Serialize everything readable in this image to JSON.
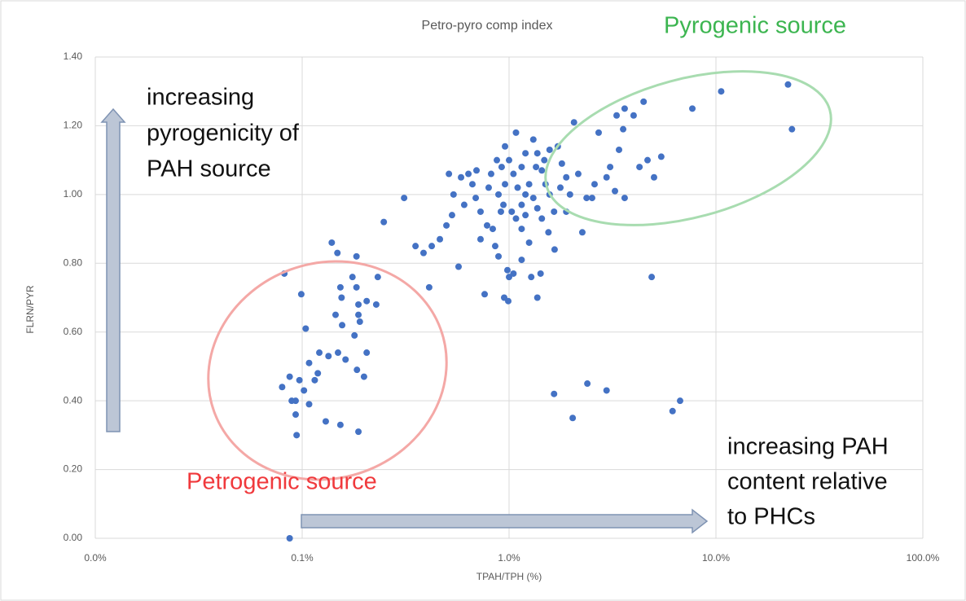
{
  "chart_data": {
    "type": "scatter",
    "title": "Petro-pyro comp index",
    "x_label": "TPAH/TPH (%)",
    "y_label": "FLRN/PYR",
    "xscale": "log",
    "xlim": [
      0.01,
      100
    ],
    "xticks": [
      {
        "value": 0.01,
        "label": "0.0%"
      },
      {
        "value": 0.1,
        "label": "0.1%"
      },
      {
        "value": 1,
        "label": "1.0%"
      },
      {
        "value": 10,
        "label": "10.0%"
      },
      {
        "value": 100,
        "label": "100.0%"
      }
    ],
    "ylim": [
      0,
      1.4
    ],
    "yticks": [
      {
        "value": 0,
        "label": "0.00"
      },
      {
        "value": 0.2,
        "label": "0.20"
      },
      {
        "value": 0.4,
        "label": "0.40"
      },
      {
        "value": 0.6,
        "label": "0.60"
      },
      {
        "value": 0.8,
        "label": "0.80"
      },
      {
        "value": 1.0,
        "label": "1.00"
      },
      {
        "value": 1.2,
        "label": "1.20"
      },
      {
        "value": 1.4,
        "label": "1.40"
      }
    ],
    "grid": true,
    "color": "#4472c4",
    "x": [
      0.087,
      0.082,
      0.099,
      0.104,
      0.139,
      0.148,
      0.183,
      0.153,
      0.155,
      0.175,
      0.183,
      0.187,
      0.205,
      0.228,
      0.232,
      0.145,
      0.156,
      0.187,
      0.19,
      0.179,
      0.205,
      0.121,
      0.134,
      0.149,
      0.108,
      0.119,
      0.115,
      0.162,
      0.184,
      0.199,
      0.087,
      0.097,
      0.08,
      0.102,
      0.089,
      0.093,
      0.108,
      0.093,
      0.094,
      0.13,
      0.153,
      0.187,
      0.248,
      0.311,
      0.353,
      0.386,
      0.423,
      0.463,
      0.512,
      0.411,
      0.498,
      0.53,
      0.539,
      0.57,
      0.586,
      0.636,
      0.665,
      0.69,
      0.728,
      0.728,
      0.762,
      0.857,
      0.889,
      0.797,
      0.819,
      0.873,
      0.921,
      0.947,
      0.991,
      0.982,
      1.0,
      1.05,
      1.08,
      0.956,
      1.0,
      1.05,
      1.1,
      1.15,
      1.2,
      1.15,
      1.25,
      1.28,
      1.42,
      1.37,
      1.31,
      1.37,
      1.44,
      1.5,
      1.57,
      1.65,
      1.55,
      1.66,
      1.72,
      1.8,
      1.89,
      1.97,
      2.16,
      2.06,
      2.26,
      2.37,
      2.59,
      2.71,
      2.96,
      3.08,
      3.25,
      3.4,
      3.31,
      3.62,
      3.56,
      4.0,
      4.27,
      4.47,
      4.67,
      4.89,
      5.02,
      5.44,
      7.69,
      10.6,
      22.3,
      23.3,
      1.65,
      2.03,
      2.39,
      2.96,
      6.17,
      6.71,
      3.62,
      2.52,
      0.913,
      0.939,
      1.03,
      1.08,
      0.889,
      0.956,
      1.2,
      1.25,
      1.31,
      1.37,
      1.44,
      1.35,
      1.48,
      1.57,
      1.15,
      1.2,
      1.77,
      1.89,
      1.15,
      0.783,
      0.834,
      0.696,
      0.607
    ],
    "values": [
      0,
      0.77,
      0.71,
      0.61,
      0.86,
      0.83,
      0.82,
      0.73,
      0.7,
      0.76,
      0.73,
      0.68,
      0.69,
      0.68,
      0.76,
      0.65,
      0.62,
      0.65,
      0.63,
      0.59,
      0.54,
      0.54,
      0.53,
      0.54,
      0.51,
      0.48,
      0.46,
      0.52,
      0.49,
      0.47,
      0.47,
      0.46,
      0.44,
      0.43,
      0.4,
      0.4,
      0.39,
      0.36,
      0.3,
      0.34,
      0.33,
      0.31,
      0.92,
      0.99,
      0.85,
      0.83,
      0.85,
      0.87,
      1.06,
      0.73,
      0.91,
      0.94,
      1.0,
      0.79,
      1.05,
      1.06,
      1.03,
      0.99,
      0.95,
      0.87,
      0.71,
      0.85,
      0.82,
      1.02,
      1.06,
      1.1,
      1.08,
      0.7,
      0.69,
      0.78,
      0.76,
      0.77,
      1.18,
      1.14,
      1.1,
      1.06,
      1.02,
      0.97,
      1.0,
      0.9,
      0.86,
      0.76,
      0.77,
      0.7,
      1.16,
      1.12,
      1.07,
      1.03,
      1.0,
      0.95,
      0.89,
      0.84,
      1.14,
      1.09,
      1.05,
      1.0,
      1.06,
      1.21,
      0.89,
      0.99,
      1.03,
      1.18,
      1.05,
      1.08,
      1.01,
      1.13,
      1.23,
      1.25,
      1.19,
      1.23,
      1.08,
      1.27,
      1.1,
      0.76,
      1.05,
      1.11,
      1.25,
      1.3,
      1.32,
      1.19,
      0.42,
      0.35,
      0.45,
      0.43,
      0.37,
      0.4,
      0.99,
      0.99,
      0.95,
      0.97,
      0.95,
      0.93,
      1.0,
      1.03,
      0.94,
      1.03,
      0.99,
      0.96,
      0.93,
      1.08,
      1.1,
      1.13,
      1.08,
      1.12,
      1.02,
      0.95,
      0.81,
      0.91,
      0.9,
      1.07,
      0.97
    ],
    "annotations": [
      {
        "lines": [
          "Pyrogenic source"
        ],
        "color": "#3cb550"
      },
      {
        "lines": [
          "Petrogenic source"
        ],
        "color": "#f0393c"
      },
      {
        "lines": [
          "increasing",
          "pyrogenicity of",
          "PAH source"
        ],
        "color": "#111111"
      },
      {
        "lines": [
          "increasing PAH",
          "content relative",
          "to PHCs"
        ],
        "color": "#111111"
      }
    ]
  }
}
